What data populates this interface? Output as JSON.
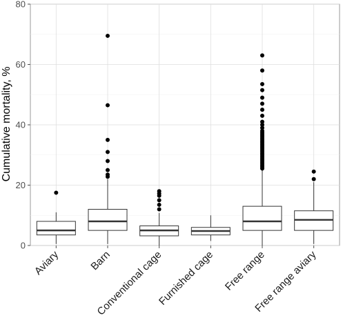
{
  "chart_data": {
    "type": "box",
    "title": "",
    "xlabel": "",
    "ylabel": "Cumulative mortality, %",
    "ylim": [
      0,
      80
    ],
    "yticks": [
      0,
      20,
      40,
      60,
      80
    ],
    "grid": true,
    "categories": [
      "Aviary",
      "Barn",
      "Conventional cage",
      "Furnished cage",
      "Free range",
      "Free range aviary"
    ],
    "boxes": [
      {
        "category": "Aviary",
        "whisker_low": 0.5,
        "q1": 3.5,
        "median": 5.0,
        "q3": 8.0,
        "whisker_high": 11.0,
        "outliers": [
          17.5
        ]
      },
      {
        "category": "Barn",
        "whisker_low": 0.5,
        "q1": 5.0,
        "median": 8.0,
        "q3": 12.0,
        "whisker_high": 22.0,
        "outliers": [
          22.8,
          23.5,
          25.0,
          28.0,
          31.0,
          35.0,
          46.5,
          69.5
        ]
      },
      {
        "category": "Conventional cage",
        "whisker_low": 0.0,
        "q1": 3.2,
        "median": 5.0,
        "q3": 6.5,
        "whisker_high": 10.8,
        "outliers": [
          12.0,
          13.5,
          15.0,
          16.5,
          17.2,
          18.0
        ]
      },
      {
        "category": "Furnished cage",
        "whisker_low": 1.5,
        "q1": 3.5,
        "median": 4.8,
        "q3": 6.0,
        "whisker_high": 10.0,
        "outliers": []
      },
      {
        "category": "Free range",
        "whisker_low": 0.0,
        "q1": 5.0,
        "median": 8.0,
        "q3": 13.0,
        "whisker_high": 25.0,
        "outliers": [
          25.5,
          26.0,
          26.5,
          27.0,
          27.5,
          28.0,
          28.5,
          29.0,
          29.5,
          30.0,
          30.5,
          31.0,
          31.5,
          32.0,
          32.5,
          33.0,
          33.5,
          34.0,
          34.5,
          35.0,
          35.5,
          36.0,
          36.5,
          37.0,
          37.5,
          38.0,
          39.0,
          40.0,
          41.0,
          43.0,
          45.0,
          47.0,
          49.0,
          51.5,
          53.5,
          58.0,
          63.0
        ]
      },
      {
        "category": "Free range aviary",
        "whisker_low": 0.5,
        "q1": 5.0,
        "median": 8.5,
        "q3": 11.5,
        "whisker_high": 21.0,
        "outliers": [
          22.0,
          24.5
        ]
      }
    ]
  }
}
